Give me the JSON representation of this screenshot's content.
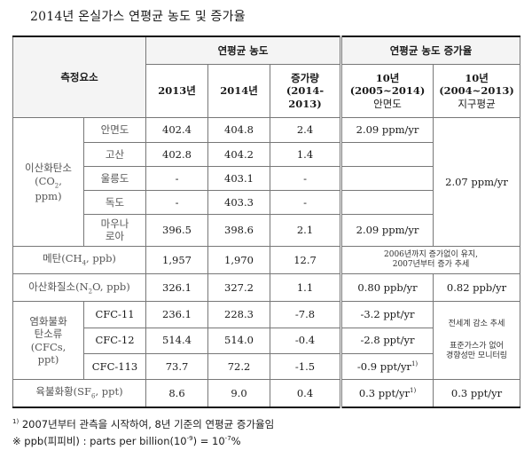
{
  "title": "2014년 온실가스 연평균 농도 및 증가율",
  "header": {
    "element": "측정요소",
    "annual_avg": "연평균 농도",
    "growth_rate": "연평균 농도 증가율",
    "y2013": "2013년",
    "y2014": "2014년",
    "increase": "증가량",
    "increase_period": "(2014-2013)",
    "col_10yr_a_line1": "10년",
    "col_10yr_a_line2": "(2005~2014)",
    "col_10yr_a_line3": "안면도",
    "col_10yr_b_line1": "10년",
    "col_10yr_b_line2": "(2004~2013)",
    "col_10yr_b_line3": "지구평균"
  },
  "co2": {
    "label_1": "이산화탄소",
    "label_2a": "(CO",
    "label_2sub": "2",
    "label_2b": ",",
    "label_3": "ppm)",
    "global_rate": "2.07 ppm/yr",
    "rows": [
      {
        "site": "안면도",
        "v2013": "402.4",
        "v2014": "404.8",
        "inc": "2.4",
        "rate": "2.09 ppm/yr"
      },
      {
        "site": "고산",
        "v2013": "402.8",
        "v2014": "404.2",
        "inc": "1.4",
        "rate": ""
      },
      {
        "site": "울릉도",
        "v2013": "-",
        "v2014": "403.1",
        "inc": "-",
        "rate": ""
      },
      {
        "site": "독도",
        "v2013": "-",
        "v2014": "403.3",
        "inc": "-",
        "rate": ""
      },
      {
        "site_1": "마우나",
        "site_2": "로아",
        "v2013": "396.5",
        "v2014": "398.6",
        "inc": "2.1",
        "rate": "2.09 ppm/yr"
      }
    ]
  },
  "ch4": {
    "label_a": "메탄(CH",
    "label_sub": "4",
    "label_b": ", ppb)",
    "v2013": "1,957",
    "v2014": "1,970",
    "inc": "12.7",
    "note_1": "2006년까지 증가없이 유지,",
    "note_2": "2007년부터 증가 추세"
  },
  "n2o": {
    "label_a": "아산화질소(N",
    "label_sub": "2",
    "label_b": "O, ppb)",
    "v2013": "326.1",
    "v2014": "327.2",
    "inc": "1.1",
    "rate": "0.80 ppb/yr",
    "global_rate": "0.82 ppb/yr"
  },
  "cfc": {
    "label_1": "염화불화",
    "label_2": "탄소류",
    "label_3": "(CFCs,",
    "label_4": "ppt)",
    "global_note_1": "전세계 감소 추세",
    "global_note_2": "표준가스가 없어",
    "global_note_3": "경향성만 모니터링",
    "rows": [
      {
        "name": "CFC-11",
        "v2013": "236.1",
        "v2014": "228.3",
        "inc": "-7.8",
        "rate": "-3.2 ppt/yr",
        "fn": ""
      },
      {
        "name": "CFC-12",
        "v2013": "514.4",
        "v2014": "514.0",
        "inc": "-0.4",
        "rate": "-2.8 ppt/yr",
        "fn": ""
      },
      {
        "name": "CFC-113",
        "v2013": "73.7",
        "v2014": "72.2",
        "inc": "-1.5",
        "rate": "-0.9 ppt/yr",
        "fn": "1)"
      }
    ]
  },
  "sf6": {
    "label_a": "육불화황(SF",
    "label_sub": "6",
    "label_b": ", ppt)",
    "v2013": "8.6",
    "v2014": "9.0",
    "inc": "0.4",
    "rate": "0.3 ppt/yr",
    "rate_fn": "1)",
    "global_rate": "0.3 ppt/yr"
  },
  "notes": {
    "fn_mark": "1)",
    "fn_text": "2007년부터 관측을 시작하여, 8년 기준의 연평균 증가율임",
    "ppb_mark": "※",
    "ppb_text_a": "ppb(피피비) : parts per billion(10",
    "ppb_exp1": "-9",
    "ppb_text_b": ") = 10",
    "ppb_exp2": "-7",
    "ppb_text_c": "%"
  }
}
